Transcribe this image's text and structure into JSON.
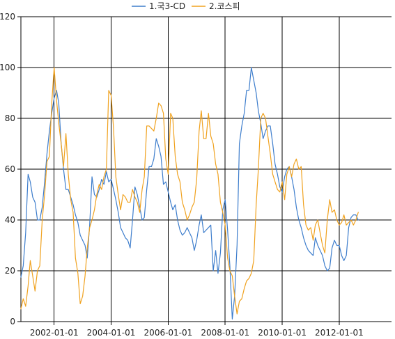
{
  "chart_data": {
    "type": "line",
    "title": "",
    "xlabel": "",
    "ylabel": "",
    "ylim": [
      0,
      120
    ],
    "y_ticks": [
      0,
      20,
      40,
      60,
      80,
      100,
      120
    ],
    "x_ticks": [
      "2002-01-01",
      "2004-01-01",
      "2006-01-01",
      "2008-01-01",
      "2010-01-01",
      "2012-01-01"
    ],
    "x_range": [
      "2000-11-01",
      "2013-11-01"
    ],
    "grid": true,
    "legend_position": "top-center",
    "series": [
      {
        "name": "1.국3-CD",
        "color": "#3d7dcc",
        "points": [
          [
            "2000-11-01",
            17.5
          ],
          [
            "2000-12-01",
            22
          ],
          [
            "2001-01-01",
            35
          ],
          [
            "2001-02-01",
            58
          ],
          [
            "2001-03-01",
            55
          ],
          [
            "2001-04-01",
            49
          ],
          [
            "2001-05-01",
            47
          ],
          [
            "2001-06-01",
            40
          ],
          [
            "2001-07-01",
            40
          ],
          [
            "2001-08-01",
            45
          ],
          [
            "2001-09-01",
            55
          ],
          [
            "2001-10-01",
            66
          ],
          [
            "2001-11-01",
            75
          ],
          [
            "2001-12-01",
            82
          ],
          [
            "2002-01-01",
            88
          ],
          [
            "2002-02-01",
            91
          ],
          [
            "2002-03-01",
            86
          ],
          [
            "2002-04-01",
            70
          ],
          [
            "2002-05-01",
            60
          ],
          [
            "2002-06-01",
            52
          ],
          [
            "2002-07-01",
            52
          ],
          [
            "2002-08-01",
            49
          ],
          [
            "2002-09-01",
            46
          ],
          [
            "2002-10-01",
            42
          ],
          [
            "2002-11-01",
            39
          ],
          [
            "2002-12-01",
            34
          ],
          [
            "2003-01-01",
            32
          ],
          [
            "2003-02-01",
            30
          ],
          [
            "2003-03-01",
            25
          ],
          [
            "2003-04-01",
            38
          ],
          [
            "2003-05-01",
            57
          ],
          [
            "2003-06-01",
            50
          ],
          [
            "2003-07-01",
            49
          ],
          [
            "2003-08-01",
            52
          ],
          [
            "2003-09-01",
            56
          ],
          [
            "2003-10-01",
            54
          ],
          [
            "2003-11-01",
            59
          ],
          [
            "2003-12-01",
            55
          ],
          [
            "2004-01-01",
            56
          ],
          [
            "2004-02-01",
            52
          ],
          [
            "2004-03-01",
            48
          ],
          [
            "2004-04-01",
            43
          ],
          [
            "2004-05-01",
            37
          ],
          [
            "2004-06-01",
            35
          ],
          [
            "2004-07-01",
            33
          ],
          [
            "2004-08-01",
            32
          ],
          [
            "2004-09-01",
            29
          ],
          [
            "2004-10-01",
            40
          ],
          [
            "2004-11-01",
            53
          ],
          [
            "2004-12-01",
            50
          ],
          [
            "2005-01-01",
            45
          ],
          [
            "2005-02-01",
            40
          ],
          [
            "2005-03-01",
            41
          ],
          [
            "2005-04-01",
            52
          ],
          [
            "2005-05-01",
            61
          ],
          [
            "2005-06-01",
            61
          ],
          [
            "2005-07-01",
            64
          ],
          [
            "2005-08-01",
            72
          ],
          [
            "2005-09-01",
            69
          ],
          [
            "2005-10-01",
            65
          ],
          [
            "2005-11-01",
            54
          ],
          [
            "2005-12-01",
            55
          ],
          [
            "2006-01-01",
            51
          ],
          [
            "2006-02-01",
            47
          ],
          [
            "2006-03-01",
            44
          ],
          [
            "2006-04-01",
            46
          ],
          [
            "2006-05-01",
            40
          ],
          [
            "2006-06-01",
            36
          ],
          [
            "2006-07-01",
            34
          ],
          [
            "2006-08-01",
            35
          ],
          [
            "2006-09-01",
            37
          ],
          [
            "2006-10-01",
            35
          ],
          [
            "2006-11-01",
            33
          ],
          [
            "2006-12-01",
            28
          ],
          [
            "2007-01-01",
            32
          ],
          [
            "2007-02-01",
            38
          ],
          [
            "2007-03-01",
            42
          ],
          [
            "2007-04-01",
            35
          ],
          [
            "2007-05-01",
            36
          ],
          [
            "2007-06-01",
            37
          ],
          [
            "2007-07-01",
            38
          ],
          [
            "2007-08-01",
            20
          ],
          [
            "2007-09-01",
            28
          ],
          [
            "2007-10-01",
            19
          ],
          [
            "2007-11-01",
            27
          ],
          [
            "2007-12-01",
            44
          ],
          [
            "2008-01-01",
            48
          ],
          [
            "2008-02-01",
            36
          ],
          [
            "2008-03-01",
            22
          ],
          [
            "2008-04-01",
            1
          ],
          [
            "2008-05-01",
            10
          ],
          [
            "2008-06-01",
            30
          ],
          [
            "2008-07-01",
            70
          ],
          [
            "2008-08-01",
            77
          ],
          [
            "2008-09-01",
            82
          ],
          [
            "2008-10-01",
            91
          ],
          [
            "2008-11-01",
            91
          ],
          [
            "2008-12-01",
            100
          ],
          [
            "2009-01-01",
            95
          ],
          [
            "2009-02-01",
            90
          ],
          [
            "2009-03-01",
            83
          ],
          [
            "2009-04-01",
            78
          ],
          [
            "2009-05-01",
            72
          ],
          [
            "2009-06-01",
            75
          ],
          [
            "2009-07-01",
            77
          ],
          [
            "2009-08-01",
            77
          ],
          [
            "2009-09-01",
            70
          ],
          [
            "2009-10-01",
            62
          ],
          [
            "2009-11-01",
            58
          ],
          [
            "2009-12-01",
            53
          ],
          [
            "2010-01-01",
            51
          ],
          [
            "2010-02-01",
            57
          ],
          [
            "2010-03-01",
            60
          ],
          [
            "2010-04-01",
            61
          ],
          [
            "2010-05-01",
            57
          ],
          [
            "2010-06-01",
            52
          ],
          [
            "2010-07-01",
            45
          ],
          [
            "2010-08-01",
            40
          ],
          [
            "2010-09-01",
            37
          ],
          [
            "2010-10-01",
            33
          ],
          [
            "2010-11-01",
            30
          ],
          [
            "2010-12-01",
            28
          ],
          [
            "2011-01-01",
            27
          ],
          [
            "2011-02-01",
            26
          ],
          [
            "2011-03-01",
            33
          ],
          [
            "2011-04-01",
            30
          ],
          [
            "2011-05-01",
            28
          ],
          [
            "2011-06-01",
            26
          ],
          [
            "2011-07-01",
            22
          ],
          [
            "2011-08-01",
            20
          ],
          [
            "2011-09-01",
            21
          ],
          [
            "2011-10-01",
            29
          ],
          [
            "2011-11-01",
            32
          ],
          [
            "2011-12-01",
            30
          ],
          [
            "2012-01-01",
            30
          ],
          [
            "2012-02-01",
            26
          ],
          [
            "2012-03-01",
            24
          ],
          [
            "2012-04-01",
            26
          ],
          [
            "2012-05-01",
            37
          ],
          [
            "2012-06-01",
            41
          ],
          [
            "2012-07-01",
            42
          ],
          [
            "2012-08-01",
            42
          ],
          [
            "2012-09-01",
            40
          ]
        ]
      },
      {
        "name": "2.코스피",
        "color": "#f0a21f",
        "points": [
          [
            "2000-11-01",
            5
          ],
          [
            "2000-12-01",
            9
          ],
          [
            "2001-01-01",
            6
          ],
          [
            "2001-02-01",
            14
          ],
          [
            "2001-03-01",
            24
          ],
          [
            "2001-04-01",
            18
          ],
          [
            "2001-05-01",
            12
          ],
          [
            "2001-06-01",
            20
          ],
          [
            "2001-07-01",
            22
          ],
          [
            "2001-08-01",
            40
          ],
          [
            "2001-09-01",
            50
          ],
          [
            "2001-10-01",
            63
          ],
          [
            "2001-11-01",
            65
          ],
          [
            "2001-12-01",
            86
          ],
          [
            "2002-01-01",
            100
          ],
          [
            "2002-02-01",
            87
          ],
          [
            "2002-03-01",
            78
          ],
          [
            "2002-04-01",
            70
          ],
          [
            "2002-05-01",
            61
          ],
          [
            "2002-06-01",
            74
          ],
          [
            "2002-07-01",
            58
          ],
          [
            "2002-08-01",
            48
          ],
          [
            "2002-09-01",
            43
          ],
          [
            "2002-10-01",
            25
          ],
          [
            "2002-11-01",
            19
          ],
          [
            "2002-12-01",
            7
          ],
          [
            "2003-01-01",
            10
          ],
          [
            "2003-02-01",
            18
          ],
          [
            "2003-03-01",
            29
          ],
          [
            "2003-04-01",
            37
          ],
          [
            "2003-05-01",
            40
          ],
          [
            "2003-06-01",
            44
          ],
          [
            "2003-07-01",
            50
          ],
          [
            "2003-08-01",
            54
          ],
          [
            "2003-09-01",
            52
          ],
          [
            "2003-10-01",
            57
          ],
          [
            "2003-11-01",
            60
          ],
          [
            "2003-12-01",
            91
          ],
          [
            "2004-01-01",
            89
          ],
          [
            "2004-02-01",
            76
          ],
          [
            "2004-03-01",
            57
          ],
          [
            "2004-04-01",
            50
          ],
          [
            "2004-05-01",
            44
          ],
          [
            "2004-06-01",
            50
          ],
          [
            "2004-07-01",
            49
          ],
          [
            "2004-08-01",
            47
          ],
          [
            "2004-09-01",
            47
          ],
          [
            "2004-10-01",
            52
          ],
          [
            "2004-11-01",
            49
          ],
          [
            "2004-12-01",
            47
          ],
          [
            "2005-01-01",
            43
          ],
          [
            "2005-02-01",
            52
          ],
          [
            "2005-03-01",
            57
          ],
          [
            "2005-04-01",
            77
          ],
          [
            "2005-05-01",
            77
          ],
          [
            "2005-06-01",
            76
          ],
          [
            "2005-07-01",
            75
          ],
          [
            "2005-08-01",
            80
          ],
          [
            "2005-09-01",
            86
          ],
          [
            "2005-10-01",
            85
          ],
          [
            "2005-11-01",
            82
          ],
          [
            "2005-12-01",
            64
          ],
          [
            "2006-01-01",
            58
          ],
          [
            "2006-02-01",
            82
          ],
          [
            "2006-03-01",
            80
          ],
          [
            "2006-04-01",
            65
          ],
          [
            "2006-05-01",
            58
          ],
          [
            "2006-06-01",
            55
          ],
          [
            "2006-07-01",
            47
          ],
          [
            "2006-08-01",
            44
          ],
          [
            "2006-09-01",
            40
          ],
          [
            "2006-10-01",
            42
          ],
          [
            "2006-11-01",
            45
          ],
          [
            "2006-12-01",
            47
          ],
          [
            "2007-01-01",
            56
          ],
          [
            "2007-02-01",
            75
          ],
          [
            "2007-03-01",
            83
          ],
          [
            "2007-04-01",
            72
          ],
          [
            "2007-05-01",
            72
          ],
          [
            "2007-06-01",
            82
          ],
          [
            "2007-07-01",
            73
          ],
          [
            "2007-08-01",
            70
          ],
          [
            "2007-09-01",
            62
          ],
          [
            "2007-10-01",
            58
          ],
          [
            "2007-11-01",
            47
          ],
          [
            "2007-12-01",
            43
          ],
          [
            "2008-01-01",
            38
          ],
          [
            "2008-02-01",
            25
          ],
          [
            "2008-03-01",
            20
          ],
          [
            "2008-04-01",
            18
          ],
          [
            "2008-05-01",
            10
          ],
          [
            "2008-06-01",
            3
          ],
          [
            "2008-07-01",
            8
          ],
          [
            "2008-08-01",
            9
          ],
          [
            "2008-09-01",
            13
          ],
          [
            "2008-10-01",
            16
          ],
          [
            "2008-11-01",
            17
          ],
          [
            "2008-12-01",
            19
          ],
          [
            "2009-01-01",
            24
          ],
          [
            "2009-02-01",
            46
          ],
          [
            "2009-03-01",
            60
          ],
          [
            "2009-04-01",
            80
          ],
          [
            "2009-05-01",
            82
          ],
          [
            "2009-06-01",
            80
          ],
          [
            "2009-07-01",
            73
          ],
          [
            "2009-08-01",
            66
          ],
          [
            "2009-09-01",
            58
          ],
          [
            "2009-10-01",
            55
          ],
          [
            "2009-11-01",
            52
          ],
          [
            "2009-12-01",
            51
          ],
          [
            "2010-01-01",
            55
          ],
          [
            "2010-02-01",
            48
          ],
          [
            "2010-03-01",
            58
          ],
          [
            "2010-04-01",
            61
          ],
          [
            "2010-05-01",
            57
          ],
          [
            "2010-06-01",
            62
          ],
          [
            "2010-07-01",
            64
          ],
          [
            "2010-08-01",
            60
          ],
          [
            "2010-09-01",
            61
          ],
          [
            "2010-10-01",
            46
          ],
          [
            "2010-11-01",
            38
          ],
          [
            "2010-12-01",
            36
          ],
          [
            "2011-01-01",
            37
          ],
          [
            "2011-02-01",
            32
          ],
          [
            "2011-03-01",
            38
          ],
          [
            "2011-04-01",
            40
          ],
          [
            "2011-05-01",
            35
          ],
          [
            "2011-06-01",
            30
          ],
          [
            "2011-07-01",
            27
          ],
          [
            "2011-08-01",
            40
          ],
          [
            "2011-09-01",
            48
          ],
          [
            "2011-10-01",
            43
          ],
          [
            "2011-11-01",
            44
          ],
          [
            "2011-12-01",
            40
          ],
          [
            "2012-01-01",
            38
          ],
          [
            "2012-02-01",
            39
          ],
          [
            "2012-03-01",
            42
          ],
          [
            "2012-04-01",
            38
          ],
          [
            "2012-05-01",
            39
          ],
          [
            "2012-06-01",
            40
          ],
          [
            "2012-07-01",
            38
          ],
          [
            "2012-08-01",
            40
          ],
          [
            "2012-09-01",
            43
          ]
        ]
      }
    ]
  }
}
